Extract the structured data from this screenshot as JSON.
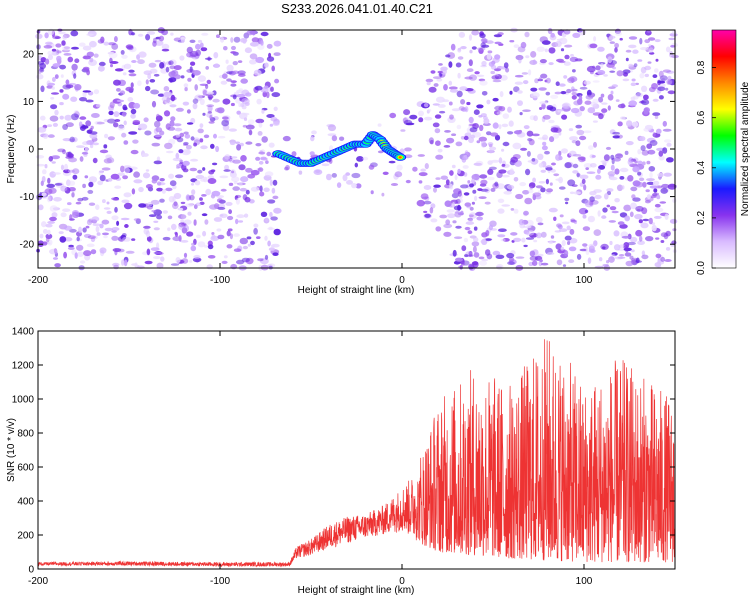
{
  "title": "S233.2026.041.01.40.C21",
  "colors": {
    "spectrogram_base": "#8833ee",
    "snr_line": "#ee3333",
    "axis": "#000000"
  },
  "chart_data": [
    {
      "type": "heatmap",
      "name": "spectrogram",
      "xlabel": "Height of straight line (km)",
      "ylabel": "Frequency (Hz)",
      "xlim": [
        -200,
        150
      ],
      "ylim": [
        -25,
        25
      ],
      "xticks": [
        -200,
        -100,
        0,
        100
      ],
      "yticks": [
        20,
        10,
        0,
        -10,
        -20
      ],
      "signal_track": {
        "x": [
          -68,
          -62,
          -56,
          -50,
          -44,
          -38,
          -32,
          -26,
          -20,
          -16,
          -12,
          -8,
          -4,
          0
        ],
        "y": [
          -1,
          -2,
          -3,
          -3,
          -2,
          -1,
          0,
          1,
          1,
          3,
          2,
          0,
          -1,
          -2
        ]
      },
      "noise_gap_km": [
        -68,
        10
      ],
      "colorbar": {
        "label": "Normalized spectral amplitude",
        "range": [
          0,
          0.95
        ],
        "ticks": [
          "0.0",
          "0.2",
          "0.4",
          "0.6",
          "0.8"
        ],
        "colors": [
          "#ffffff",
          "#d9bbff",
          "#8833ee",
          "#1a1aff",
          "#00ffff",
          "#00ff00",
          "#ffff00",
          "#ff8800",
          "#ff0000",
          "#ff00aa"
        ]
      }
    },
    {
      "type": "line",
      "name": "snr",
      "xlabel": "Height of straight line (km)",
      "ylabel": "SNR (10 * v/v)",
      "xlim": [
        -200,
        150
      ],
      "ylim": [
        0,
        1400
      ],
      "xticks": [
        -200,
        -100,
        0,
        100
      ],
      "yticks": [
        0,
        200,
        400,
        600,
        800,
        1000,
        1200,
        1400
      ],
      "envelope": {
        "x": [
          -200,
          -150,
          -100,
          -62,
          -58,
          -50,
          -40,
          -30,
          -20,
          -10,
          0,
          10,
          20,
          40,
          60,
          80,
          100,
          120,
          150
        ],
        "low": [
          20,
          20,
          15,
          15,
          60,
          80,
          120,
          150,
          180,
          200,
          220,
          150,
          100,
          80,
          60,
          50,
          40,
          40,
          40
        ],
        "high": [
          40,
          45,
          40,
          40,
          150,
          200,
          300,
          350,
          360,
          420,
          550,
          700,
          1000,
          1200,
          1100,
          1400,
          1100,
          1250,
          1000
        ]
      }
    }
  ]
}
